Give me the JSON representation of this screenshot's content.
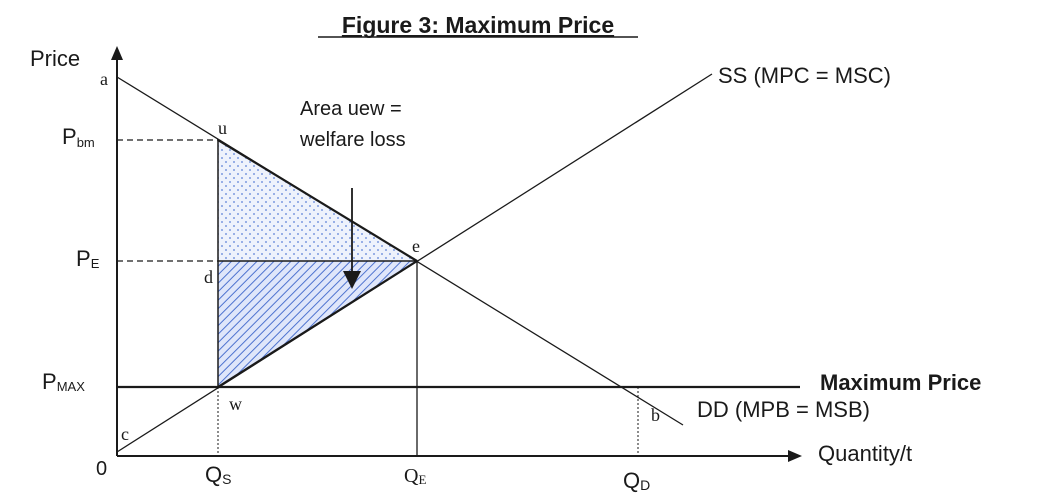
{
  "figure": {
    "title": "Figure 3: Maximum Price"
  },
  "axes": {
    "y_label": "Price",
    "x_label": "Quantity/t",
    "origin": "0"
  },
  "price_labels": {
    "p_bm": {
      "main": "P",
      "sub": "bm"
    },
    "p_e": {
      "main": "P",
      "sub": "E"
    },
    "p_max": {
      "main": "P",
      "sub": "MAX"
    }
  },
  "quantity_labels": {
    "q_s": {
      "main": "Q",
      "sub": "S"
    },
    "q_e": {
      "main": "Q",
      "sub": "E"
    },
    "q_d": {
      "main": "Q",
      "sub": "D"
    }
  },
  "curves": {
    "supply": "SS (MPC = MSC)",
    "demand": "DD (MPB = MSB)",
    "max_price": "Maximum Price"
  },
  "points": {
    "a": "a",
    "u": "u",
    "e": "e",
    "d": "d",
    "w": "w",
    "b": "b",
    "c": "c"
  },
  "annotation": {
    "line1": "Area uew =",
    "line2": "welfare loss"
  },
  "colors": {
    "ink": "#1a1a1a",
    "shade_blue": "#5b7fd6",
    "shade_fill": "#e9eefb"
  }
}
